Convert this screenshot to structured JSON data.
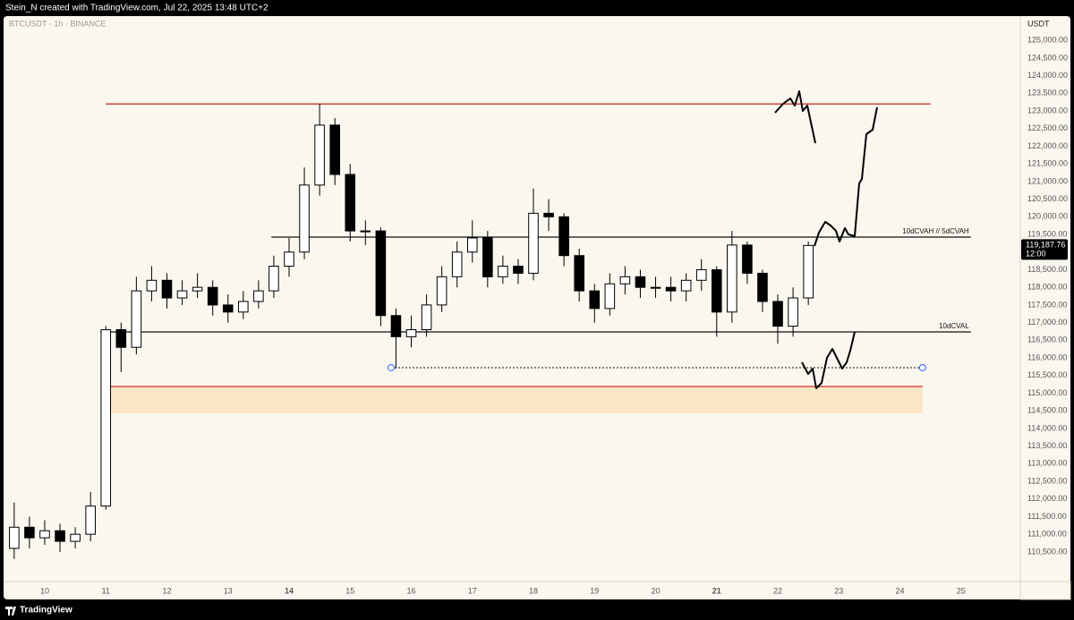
{
  "chart_data": {
    "type": "candlestick",
    "header": "Stein_N created with TradingView.com, Jul 22, 2025 13:48 UTC+2",
    "symbol": "BTCUSDT · 1h · BINANCE",
    "currency": "USDT",
    "footer": "TradingView",
    "x": [
      9.5,
      9.75,
      10,
      10.25,
      10.5,
      10.75,
      11,
      11.25,
      11.5,
      11.75,
      12,
      12.25,
      12.5,
      12.75,
      13,
      13.25,
      13.5,
      13.75,
      14,
      14.25,
      14.5,
      14.75,
      15,
      15.25,
      15.5,
      15.75,
      16,
      16.25,
      16.5,
      16.75,
      17,
      17.25,
      17.5,
      17.75,
      18,
      18.25,
      18.5,
      18.75,
      19,
      19.25,
      19.5,
      19.75,
      20,
      20.25,
      20.5,
      20.75,
      21,
      21.25,
      21.5,
      21.75,
      22,
      22.25,
      22.5
    ],
    "open": [
      110600,
      111200,
      110900,
      111100,
      110800,
      111000,
      111800,
      116800,
      116300,
      117900,
      118200,
      117700,
      117900,
      118000,
      117500,
      117300,
      117600,
      117900,
      118600,
      119000,
      120900,
      122600,
      121200,
      119600,
      119600,
      117200,
      116600,
      116800,
      117500,
      118300,
      119000,
      119400,
      118300,
      118600,
      118400,
      120100,
      120000,
      118900,
      117900,
      117400,
      118100,
      118300,
      118000,
      118000,
      117900,
      118200,
      118500,
      117300,
      119200,
      118400,
      117600,
      116900,
      117700
    ],
    "high": [
      111900,
      111500,
      111400,
      111300,
      111200,
      112200,
      116900,
      117000,
      118300,
      118600,
      118400,
      118200,
      118400,
      118200,
      117800,
      117900,
      118200,
      118900,
      119400,
      121400,
      123200,
      122800,
      121500,
      119900,
      119700,
      117400,
      117200,
      117800,
      118600,
      119300,
      119900,
      119600,
      118900,
      118800,
      120800,
      120500,
      120100,
      119100,
      118100,
      118400,
      118600,
      118500,
      118300,
      118300,
      118400,
      118800,
      118600,
      119600,
      119300,
      118500,
      117800,
      118000,
      119300
    ],
    "low": [
      110300,
      110600,
      110700,
      110500,
      110600,
      110800,
      111700,
      115600,
      116100,
      117600,
      117400,
      117500,
      117700,
      117200,
      117000,
      117100,
      117400,
      117700,
      118300,
      118800,
      120600,
      120900,
      119300,
      119200,
      116900,
      115700,
      116300,
      116600,
      117300,
      118000,
      118700,
      118000,
      118100,
      118100,
      118200,
      119600,
      118600,
      117600,
      117000,
      117200,
      117800,
      117700,
      117700,
      117600,
      117600,
      117900,
      116600,
      117000,
      118100,
      117300,
      116400,
      116600,
      117500
    ],
    "close": [
      111200,
      110900,
      111100,
      110800,
      111000,
      111800,
      116800,
      116300,
      117900,
      118200,
      117700,
      117900,
      118000,
      117500,
      117300,
      117600,
      117900,
      118600,
      119000,
      120900,
      122600,
      121200,
      119600,
      119600,
      117200,
      116600,
      116800,
      117500,
      118300,
      119000,
      119400,
      118300,
      118600,
      118400,
      120100,
      120000,
      118900,
      117900,
      117400,
      118100,
      118300,
      118000,
      118000,
      117900,
      118200,
      118500,
      117300,
      119200,
      118400,
      117600,
      116900,
      117700,
      119187.76
    ],
    "xlim": [
      9.385,
      25.97
    ],
    "ylim": [
      109660,
      125690
    ],
    "xticks": [
      10,
      11,
      12,
      13,
      14,
      15,
      16,
      17,
      18,
      19,
      20,
      21,
      22,
      23,
      24,
      25
    ],
    "xticks_bold": [
      14,
      21
    ],
    "yticks": [
      {
        "value": 110500,
        "label": "110,500.00"
      },
      {
        "value": 111000,
        "label": "111,000.00"
      },
      {
        "value": 111500,
        "label": "111,500.00"
      },
      {
        "value": 112000,
        "label": "112,000.00"
      },
      {
        "value": 112500,
        "label": "112,500.00"
      },
      {
        "value": 113000,
        "label": "113,000.00"
      },
      {
        "value": 113500,
        "label": "113,500.00"
      },
      {
        "value": 114000,
        "label": "114,000.00"
      },
      {
        "value": 114500,
        "label": "114,500.00"
      },
      {
        "value": 115000,
        "label": "115,000.00"
      },
      {
        "value": 115500,
        "label": "115,500.00"
      },
      {
        "value": 116000,
        "label": "116,000.00"
      },
      {
        "value": 116500,
        "label": "116,500.00"
      },
      {
        "value": 117000,
        "label": "117,000.00"
      },
      {
        "value": 117500,
        "label": "117,500.00"
      },
      {
        "value": 118000,
        "label": "118,000.00"
      },
      {
        "value": 118500,
        "label": "118,500.00"
      },
      {
        "value": 119000,
        "label": "119,000.00"
      },
      {
        "value": 119500,
        "label": "119,500.00"
      },
      {
        "value": 120000,
        "label": "120,000.00"
      },
      {
        "value": 120500,
        "label": "120,500.00"
      },
      {
        "value": 121000,
        "label": "121,000.00"
      },
      {
        "value": 121500,
        "label": "121,500.00"
      },
      {
        "value": 122000,
        "label": "122,000.00"
      },
      {
        "value": 122500,
        "label": "122,500.00"
      },
      {
        "value": 123000,
        "label": "123,000.00"
      },
      {
        "value": 123500,
        "label": "123,500.00"
      },
      {
        "value": 124000,
        "label": "124,000.00"
      },
      {
        "value": 124500,
        "label": "124,500.00"
      },
      {
        "value": 125000,
        "label": "125,000.00"
      }
    ],
    "zone": {
      "from": 114430,
      "to": 115190,
      "x": [
        11.0,
        24.37
      ],
      "color": "#fae5c4"
    },
    "levels": [
      {
        "value": 123200,
        "x": [
          11.0,
          24.5
        ],
        "color": "#d32f2f"
      },
      {
        "value": 119425,
        "x": [
          13.71,
          25.16
        ],
        "color": "#111111",
        "label": "10dCVAH // 5dCVAH"
      },
      {
        "value": 116737,
        "x": [
          10.91,
          25.16
        ],
        "color": "#111111",
        "label": "10dCVAL"
      },
      {
        "value": 115723,
        "x": [
          15.67,
          24.37
        ],
        "color": "#111111",
        "dotted": true
      },
      {
        "value": 115190,
        "x": [
          11.0,
          24.37
        ],
        "color": "#d32f2f"
      }
    ],
    "price_tag": {
      "value": 119187.76,
      "label": "119,187.76",
      "time": "12:00"
    }
  }
}
